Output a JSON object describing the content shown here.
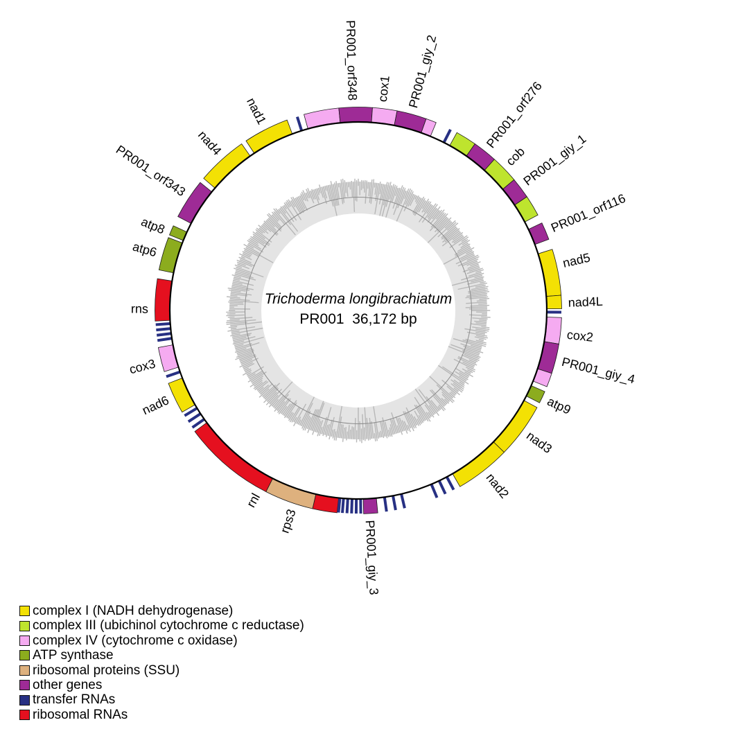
{
  "title": {
    "organism": "Trichoderma longibrachiatum",
    "info_line": "PR001  36,172 bp"
  },
  "legend": {
    "items": [
      {
        "key": "complex_I",
        "label": "complex I (NADH dehydrogenase)",
        "color": "#F3E104"
      },
      {
        "key": "complex_III",
        "label": "complex III (ubichinol cytochrome c reductase)",
        "color": "#BEE42E"
      },
      {
        "key": "complex_IV",
        "label": "complex IV (cytochrome c oxidase)",
        "color": "#F5ABF1"
      },
      {
        "key": "atp_synthase",
        "label": "ATP synthase",
        "color": "#8CAC1E"
      },
      {
        "key": "ribosomal_proteins",
        "label": "ribosomal proteins (SSU)",
        "color": "#DEB17E"
      },
      {
        "key": "other_genes",
        "label": "other genes",
        "color": "#9E2B96"
      },
      {
        "key": "transfer_RNAs",
        "label": "transfer RNAs",
        "color": "#273083"
      },
      {
        "key": "ribosomal_RNAs",
        "label": "ribosomal RNAs",
        "color": "#E5101F"
      }
    ]
  },
  "chart_data": {
    "type": "circular_genome_map",
    "title": "Trichoderma longibrachiatum PR001 mitochondrial genome",
    "genome": {
      "organism": "Trichoderma longibrachiatum",
      "name": "PR001",
      "length_bp_label": "36,172 bp"
    },
    "angle_units": "degrees clockwise from 12 o'clock",
    "categories": {
      "complex_I": {
        "label": "complex I (NADH dehydrogenase)",
        "color": "#F3E104"
      },
      "complex_III": {
        "label": "complex III (ubichinol cytochrome c reductase)",
        "color": "#BEE42E"
      },
      "complex_IV": {
        "label": "complex IV (cytochrome c oxidase)",
        "color": "#F5ABF1"
      },
      "atp_synthase": {
        "label": "ATP synthase",
        "color": "#8CAC1E"
      },
      "ribosomal_proteins": {
        "label": "ribosomal proteins (SSU)",
        "color": "#DEB17E"
      },
      "other_genes": {
        "label": "other genes",
        "color": "#9E2B96"
      },
      "transfer_RNAs": {
        "label": "transfer RNAs",
        "color": "#273083"
      },
      "ribosomal_RNAs": {
        "label": "ribosomal RNAs",
        "color": "#E5101F"
      }
    },
    "segments": [
      {
        "gene": "cox1",
        "category": "complex_IV",
        "start": 344.5,
        "end": 354.5
      },
      {
        "gene": "PR001_orf348",
        "category": "other_genes",
        "start": 354.5,
        "end": 364
      },
      {
        "gene": "cox1",
        "category": "complex_IV",
        "start": 4,
        "end": 11
      },
      {
        "gene": "PR001_giy_2",
        "category": "other_genes",
        "start": 11,
        "end": 19.5
      },
      {
        "gene": "cox1",
        "category": "complex_IV",
        "start": 19.5,
        "end": 22.5
      },
      {
        "gene": "cob",
        "category": "complex_III",
        "start": 29,
        "end": 35
      },
      {
        "gene": "PR001_orf276",
        "category": "other_genes",
        "start": 35,
        "end": 42
      },
      {
        "gene": "cob",
        "category": "complex_III",
        "start": 42,
        "end": 50
      },
      {
        "gene": "PR001_giy_1",
        "category": "other_genes",
        "start": 50,
        "end": 56
      },
      {
        "gene": "cob",
        "category": "complex_III",
        "start": 56,
        "end": 62
      },
      {
        "gene": "PR001_orf116",
        "category": "other_genes",
        "start": 64.5,
        "end": 69.5
      },
      {
        "gene": "nad5",
        "category": "complex_I",
        "start": 72.5,
        "end": 85.7
      },
      {
        "gene": "nad4L",
        "category": "complex_I",
        "start": 85.7,
        "end": 89.5
      },
      {
        "gene": "cox2",
        "category": "complex_IV",
        "start": 92,
        "end": 99.5
      },
      {
        "gene": "PR001_giy_4",
        "category": "other_genes",
        "start": 99.5,
        "end": 108
      },
      {
        "gene": "cox2",
        "category": "complex_IV",
        "start": 108,
        "end": 112
      },
      {
        "gene": "atp9",
        "category": "atp_synthase",
        "start": 113.5,
        "end": 117
      },
      {
        "gene": "nad3",
        "category": "complex_I",
        "start": 118.5,
        "end": 134.2
      },
      {
        "gene": "nad2",
        "category": "complex_I",
        "start": 134.2,
        "end": 150
      },
      {
        "gene": "PR001_giy_3",
        "category": "other_genes",
        "start": 174.5,
        "end": 178.5
      },
      {
        "gene": "rnl",
        "category": "ribosomal_RNAs",
        "start": 186,
        "end": 193
      },
      {
        "gene": "rps3",
        "category": "ribosomal_proteins",
        "start": 193,
        "end": 207
      },
      {
        "gene": "rnl",
        "category": "ribosomal_RNAs",
        "start": 207,
        "end": 233.5
      },
      {
        "gene": "nad6",
        "category": "complex_I",
        "start": 240,
        "end": 249
      },
      {
        "gene": "cox3",
        "category": "complex_IV",
        "start": 252.5,
        "end": 259.5
      },
      {
        "gene": "rns",
        "category": "ribosomal_RNAs",
        "start": 267,
        "end": 279
      },
      {
        "gene": "atp6",
        "category": "atp_synthase",
        "start": 281.5,
        "end": 291
      },
      {
        "gene": "atp8",
        "category": "atp_synthase",
        "start": 291.8,
        "end": 294.6
      },
      {
        "gene": "PR001_orf343",
        "category": "other_genes",
        "start": 297.5,
        "end": 309
      },
      {
        "gene": "nad4",
        "category": "complex_I",
        "start": 310.5,
        "end": 325
      },
      {
        "gene": "nad1",
        "category": "complex_I",
        "start": 326.5,
        "end": 339.5
      }
    ],
    "trna_tick_angles": [
      27,
      90.5,
      152,
      154.6,
      157.2,
      166.8,
      169.4,
      172,
      179.3,
      180.6,
      181.9,
      183.2,
      184.5,
      185.6,
      234.8,
      236.8,
      238.8,
      251,
      261.5,
      263,
      264.5,
      266,
      342.5
    ],
    "labels": [
      {
        "text": "PR001_orf348",
        "angle": 358.5
      },
      {
        "text": "cox1",
        "angle": 6.5
      },
      {
        "text": "PR001_giy_2",
        "angle": 15
      },
      {
        "text": "PR001_orf276",
        "angle": 38.5
      },
      {
        "text": "cob",
        "angle": 45.5
      },
      {
        "text": "PR001_giy_1",
        "angle": 52.5
      },
      {
        "text": "PR001_orf116",
        "angle": 67
      },
      {
        "text": "nad5",
        "angle": 77
      },
      {
        "text": "nad4L",
        "angle": 87.8
      },
      {
        "text": "cox2",
        "angle": 96.5
      },
      {
        "text": "PR001_giy_4",
        "angle": 104
      },
      {
        "text": "atp9",
        "angle": 115.3
      },
      {
        "text": "nad3",
        "angle": 126
      },
      {
        "text": "nad2",
        "angle": 141.5
      },
      {
        "text": "PR001_giy_3",
        "angle": 176.8
      },
      {
        "text": "rps3",
        "angle": 198.5
      },
      {
        "text": "rnl",
        "angle": 209
      },
      {
        "text": "nad6",
        "angle": 245
      },
      {
        "text": "cox3",
        "angle": 255.5
      },
      {
        "text": "rns",
        "angle": 270.5
      },
      {
        "text": "atp6",
        "angle": 286
      },
      {
        "text": "atp8",
        "angle": 292.5
      },
      {
        "text": "PR001_orf343",
        "angle": 304
      },
      {
        "text": "nad4",
        "angle": 318.5
      },
      {
        "text": "nad1",
        "angle": 333
      }
    ],
    "gc_ring": {
      "description": "inner gray ring: GC content plot with baseline circle",
      "background_color": "#E4E4E4",
      "bar_color": "#B7B7B7",
      "baseline_color": "#8C8C8C"
    }
  }
}
